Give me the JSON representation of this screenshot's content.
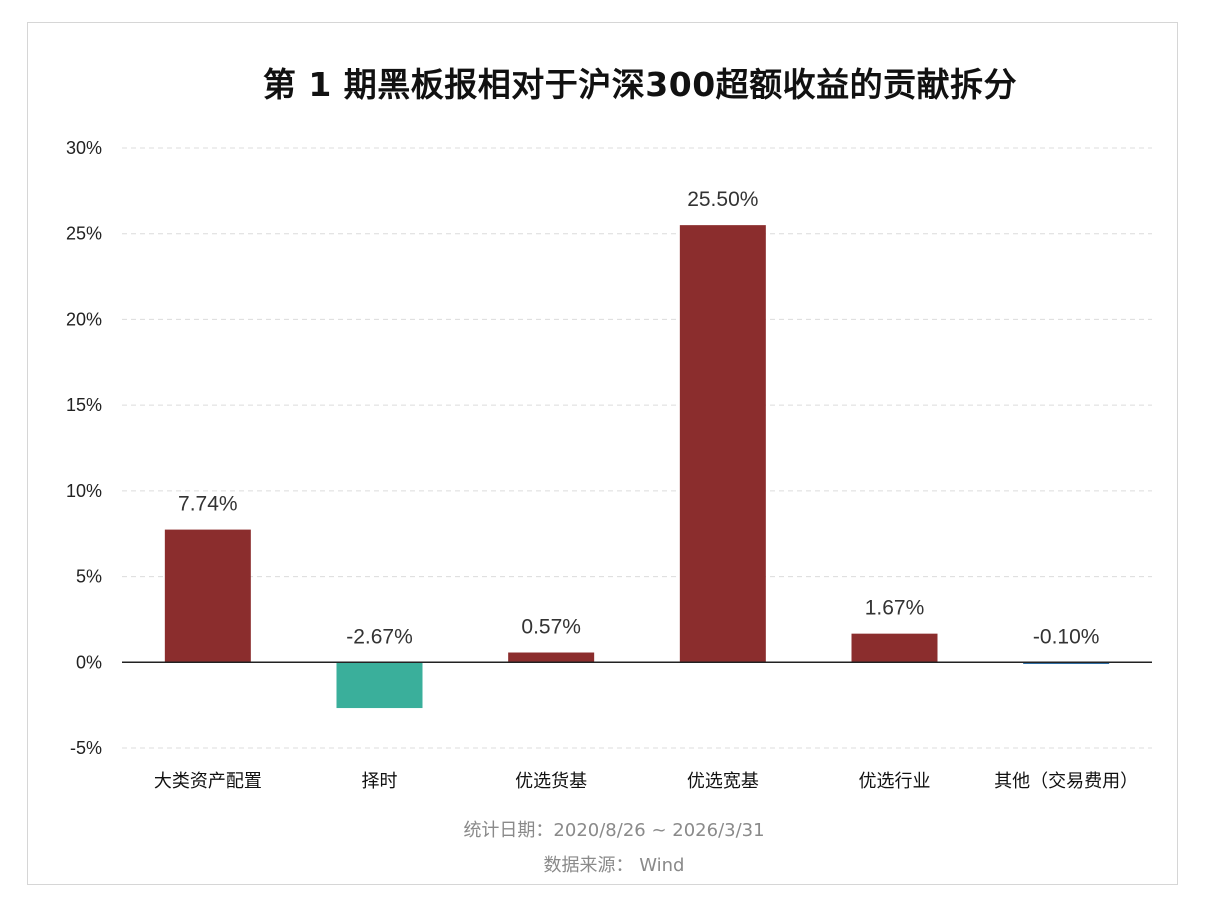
{
  "chart_data": {
    "type": "bar",
    "title": "第 1 期黑板报相对于沪深300超额收益的贡献拆分",
    "categories": [
      "大类资产配置",
      "择时",
      "优选货基",
      "优选宽基",
      "优选行业",
      "其他（交易费用）"
    ],
    "values": [
      7.74,
      -2.67,
      0.57,
      25.5,
      1.67,
      -0.1
    ],
    "data_labels": [
      "7.74%",
      "-2.67%",
      "0.57%",
      "25.50%",
      "1.67%",
      "-0.10%"
    ],
    "bar_colors": [
      "#8b2d2d",
      "#3aaf9b",
      "#8b2d2d",
      "#8b2d2d",
      "#8b2d2d",
      "#2e6da4"
    ],
    "ylim": [
      -5,
      30
    ],
    "yticks": [
      -5,
      0,
      5,
      10,
      15,
      20,
      25,
      30
    ],
    "ytick_labels": [
      "-5%",
      "0%",
      "5%",
      "10%",
      "15%",
      "20%",
      "25%",
      "30%"
    ],
    "xlabel": "",
    "ylabel": "",
    "grid": true
  },
  "footer": {
    "period": "统计日期：2020/8/26 ~ 2026/3/31",
    "source": "数据来源： Wind"
  }
}
